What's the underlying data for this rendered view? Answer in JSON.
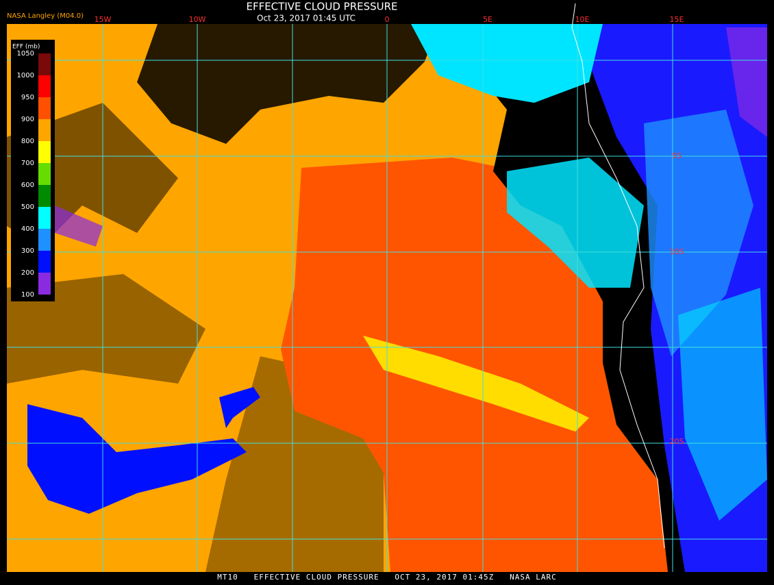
{
  "header": {
    "title": "EFFECTIVE CLOUD PRESSURE",
    "subtitle": "Oct 23, 2017 01:45 UTC",
    "credit": "NASA Langley (M04.0)"
  },
  "legend": {
    "title": "EFF (mb)",
    "labels": [
      1050,
      1000,
      950,
      900,
      800,
      700,
      600,
      500,
      400,
      300,
      200,
      100
    ],
    "colors": [
      "#7a0a0a",
      "#ff0000",
      "#ff5000",
      "#ffa500",
      "#ffff00",
      "#66dd00",
      "#008a00",
      "#00ffff",
      "#1e90ff",
      "#0010ff",
      "#8a2be2"
    ]
  },
  "grid": {
    "longitude_labels": [
      "15W",
      "10W",
      "0",
      "5E",
      "10E",
      "15E"
    ],
    "latitude_labels": [
      "5S",
      "10S",
      "20S"
    ]
  },
  "footer": {
    "text": "MT10   EFFECTIVE CLOUD PRESSURE   OCT 23, 2017 01:45Z   NASA LARC"
  }
}
